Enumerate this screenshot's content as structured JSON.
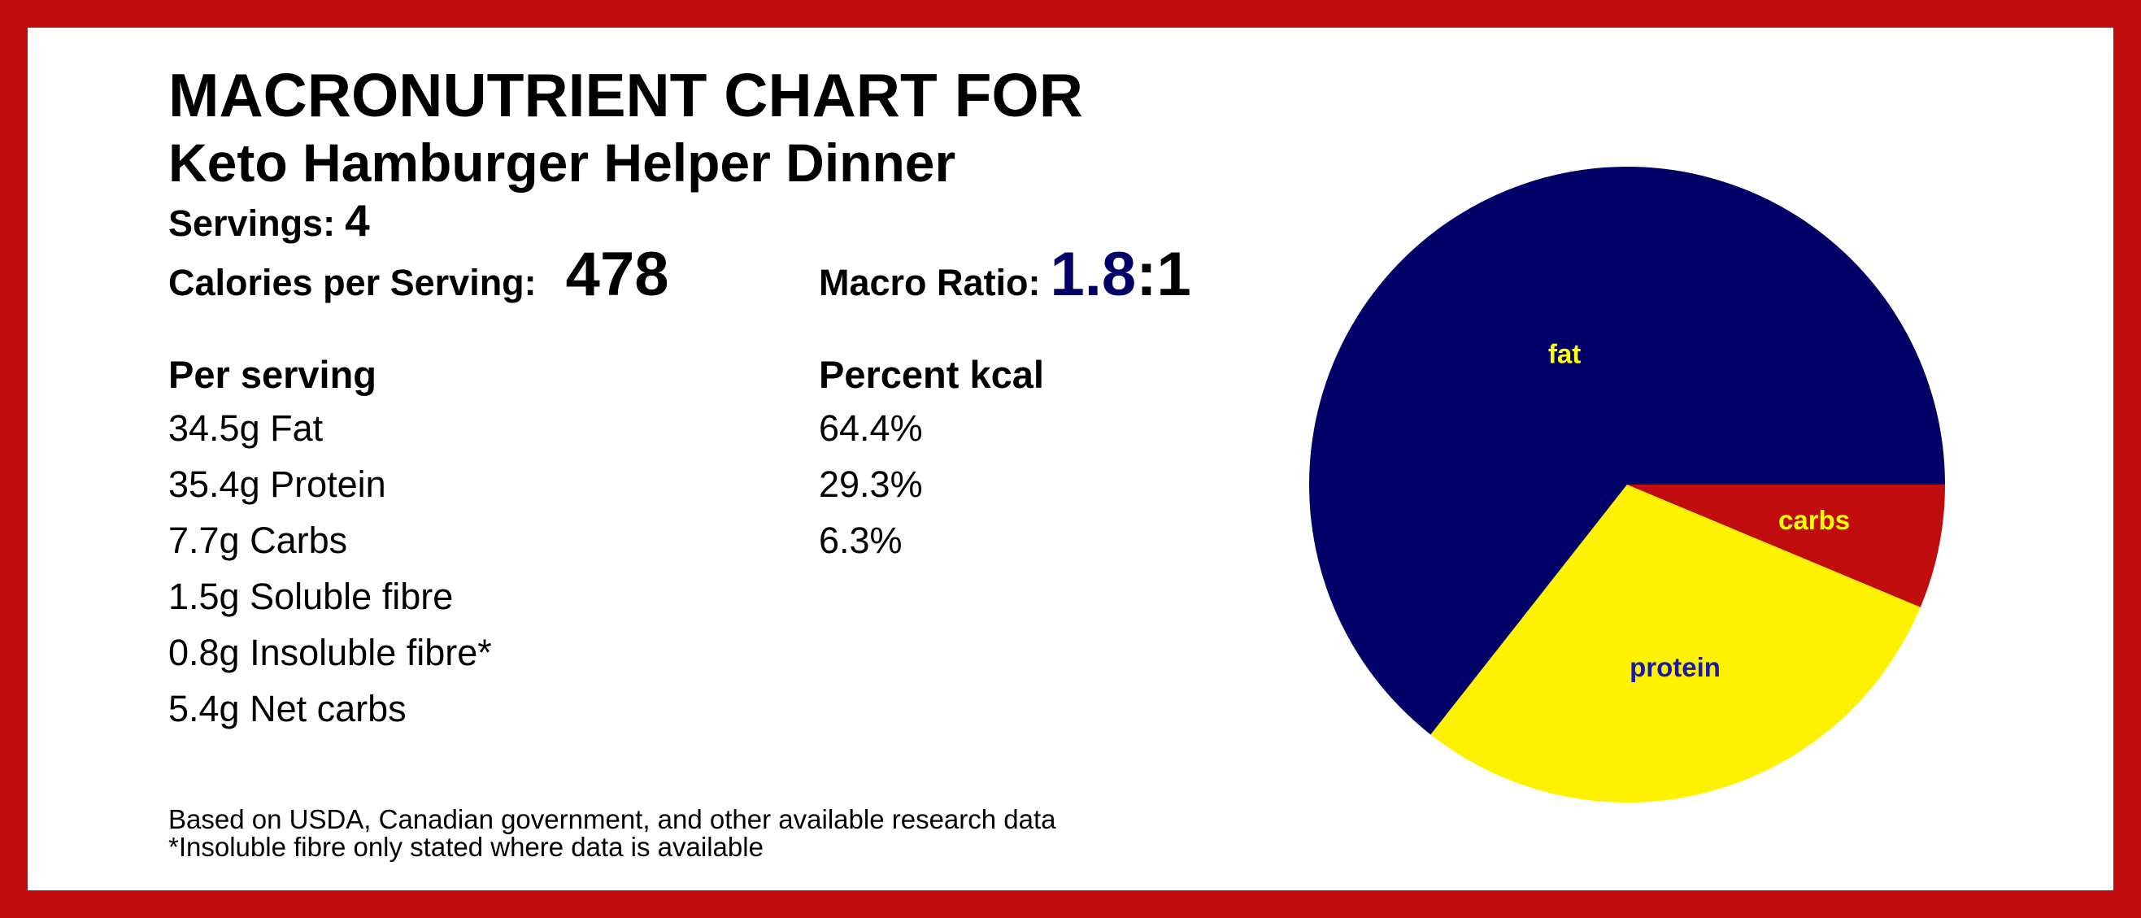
{
  "header": {
    "title": "MACRONUTRIENT CHART FOR",
    "subtitle": "Keto Hamburger Helper Dinner"
  },
  "servings": {
    "label": "Servings:",
    "value": 4
  },
  "calories": {
    "label": "Calories per Serving:",
    "value": 478
  },
  "macro_ratio": {
    "label": "Macro Ratio:",
    "ratio": 1.8,
    "suffix": ":1"
  },
  "per_serving": {
    "heading": "Per serving",
    "items": [
      "34.5g Fat",
      "35.4g Protein",
      "7.7g Carbs",
      "1.5g Soluble fibre",
      "0.8g Insoluble fibre*",
      "5.4g Net carbs"
    ]
  },
  "percent_kcal": {
    "heading": "Percent kcal"
  },
  "footnotes": [
    "Based on USDA, Canadian government, and other available research data",
    "*Insoluble fibre only stated where data is available"
  ],
  "chart_data": {
    "type": "pie",
    "categories": [
      "fat",
      "protein",
      "carbs"
    ],
    "values": [
      64.4,
      29.3,
      6.3
    ],
    "value_labels": [
      "64.4%",
      "29.3%",
      "6.3%"
    ],
    "colors": [
      "#000066",
      "#fff200",
      "#c00c0c"
    ],
    "label_colors": [
      "#ffff00",
      "#1a1aa6",
      "#ffff00"
    ]
  }
}
